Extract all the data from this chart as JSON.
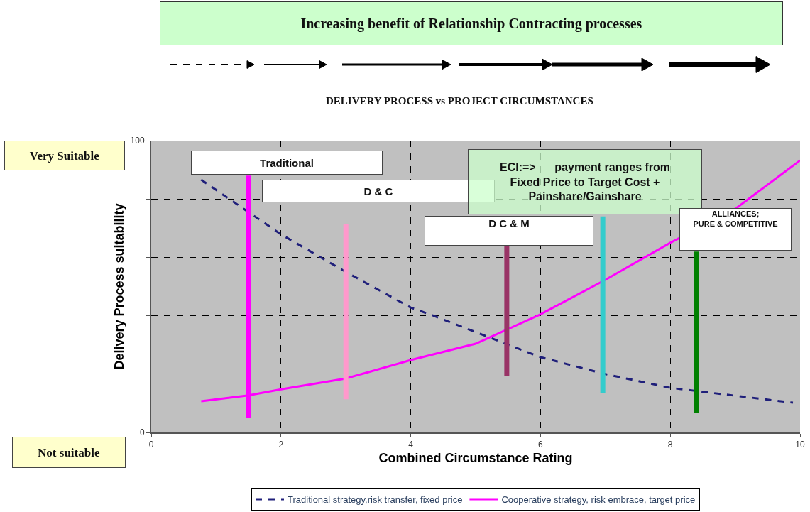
{
  "chart_data": {
    "type": "line",
    "title": "Increasing benefit of Relationship Contracting processes",
    "subtitle": "DELIVERY PROCESS vs PROJECT CIRCUMSTANCES",
    "xlabel": "Combined Circumstance Rating",
    "ylabel": "Delivery Process suitability",
    "xlim": [
      0,
      10
    ],
    "xticks": [
      0,
      2,
      4,
      6,
      8,
      10
    ],
    "ylim": [
      0,
      100
    ],
    "yticks": [
      0,
      {
        "value": 20,
        "label": null
      },
      {
        "value": 40,
        "label": null
      },
      {
        "value": 60,
        "label": null
      },
      {
        "value": 80,
        "label": null
      },
      100
    ],
    "grid": true,
    "legend": "bottom",
    "marker": "none",
    "series": [
      {
        "name": "Traditional strategy,risk transfer, fixed price",
        "color": "#1f1f7a",
        "line_style": "dashed",
        "x": [
          0.77,
          2,
          3,
          4,
          4.34,
          6,
          7,
          8,
          9.89
        ],
        "values": [
          86.6,
          67.9,
          55,
          42.8,
          40.1,
          25.8,
          20,
          15.3,
          10.2
        ]
      },
      {
        "name": "Cooperative strategy, risk embrace, target price",
        "color": "#ff00ff",
        "line_style": "solid",
        "x": [
          0.77,
          1.5,
          2,
          3,
          4,
          5,
          6,
          7,
          8,
          9,
          10
        ],
        "values": [
          10.7,
          12.7,
          14.8,
          18.5,
          24.8,
          30.4,
          40.5,
          52.3,
          65,
          76.6,
          93.2
        ]
      },
      {
        "color": "#ff00ff",
        "line_style": "solid",
        "x": [
          1.5,
          1.5
        ],
        "values": [
          5.1,
          88
        ]
      },
      {
        "color": "#ff99cc",
        "line_style": "solid",
        "x": [
          3.0,
          3.0
        ],
        "values": [
          11.4,
          71.5
        ]
      },
      {
        "color": "#993366",
        "line_style": "solid",
        "x": [
          5.48,
          5.48
        ],
        "values": [
          19.2,
          64
        ]
      },
      {
        "color": "#33cccc",
        "line_style": "solid",
        "x": [
          6.96,
          6.96
        ],
        "values": [
          13.6,
          74
        ]
      },
      {
        "color": "#008000",
        "line_style": "solid",
        "x": [
          8.4,
          8.4
        ],
        "values": [
          6.8,
          62
        ]
      }
    ],
    "annotations": [
      "Traditional",
      "D & C",
      "D C & M",
      "ECI:=>      payment ranges from\nFixed Price to Target Cost +\nPainshare/Gainshare",
      "ALLIANCES;\nPURE & COMPETITIVE",
      "Very Suitable",
      "Not suitable"
    ]
  }
}
